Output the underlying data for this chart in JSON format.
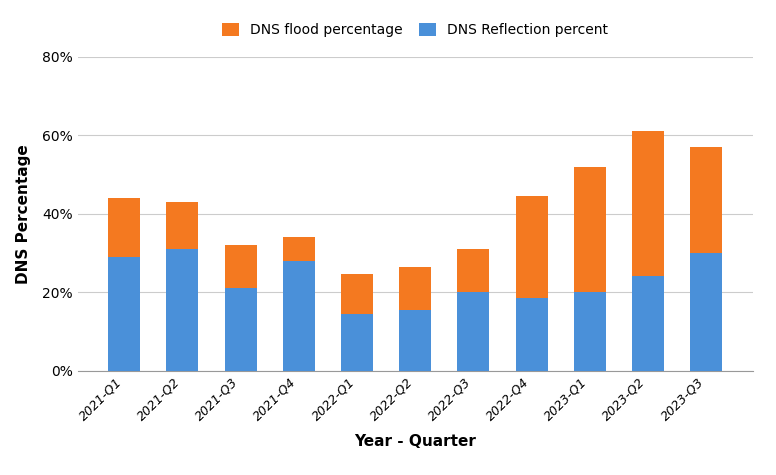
{
  "categories": [
    "2021-Q1",
    "2021-Q2",
    "2021-Q3",
    "2021-Q4",
    "2022-Q1",
    "2022-Q2",
    "2022-Q3",
    "2022-Q4",
    "2023-Q1",
    "2023-Q2",
    "2023-Q3"
  ],
  "dns_reflection": [
    29,
    31,
    21,
    28,
    14.5,
    15.5,
    20,
    18.5,
    20,
    24,
    30
  ],
  "dns_flood": [
    15,
    12,
    11,
    6,
    10,
    11,
    11,
    26,
    32,
    37,
    27
  ],
  "flood_color": "#F47920",
  "reflection_color": "#4A90D9",
  "legend_flood": "DNS flood percentage",
  "legend_reflection": "DNS Reflection percent",
  "xlabel": "Year - Quarter",
  "ylabel": "DNS Percentage",
  "ylim": [
    0,
    80
  ],
  "yticks": [
    0,
    20,
    40,
    60,
    80
  ],
  "ytick_labels": [
    "0%",
    "20%",
    "40%",
    "60%",
    "80%"
  ],
  "background_color": "#ffffff",
  "grid_color": "#cccccc",
  "bar_width": 0.55
}
